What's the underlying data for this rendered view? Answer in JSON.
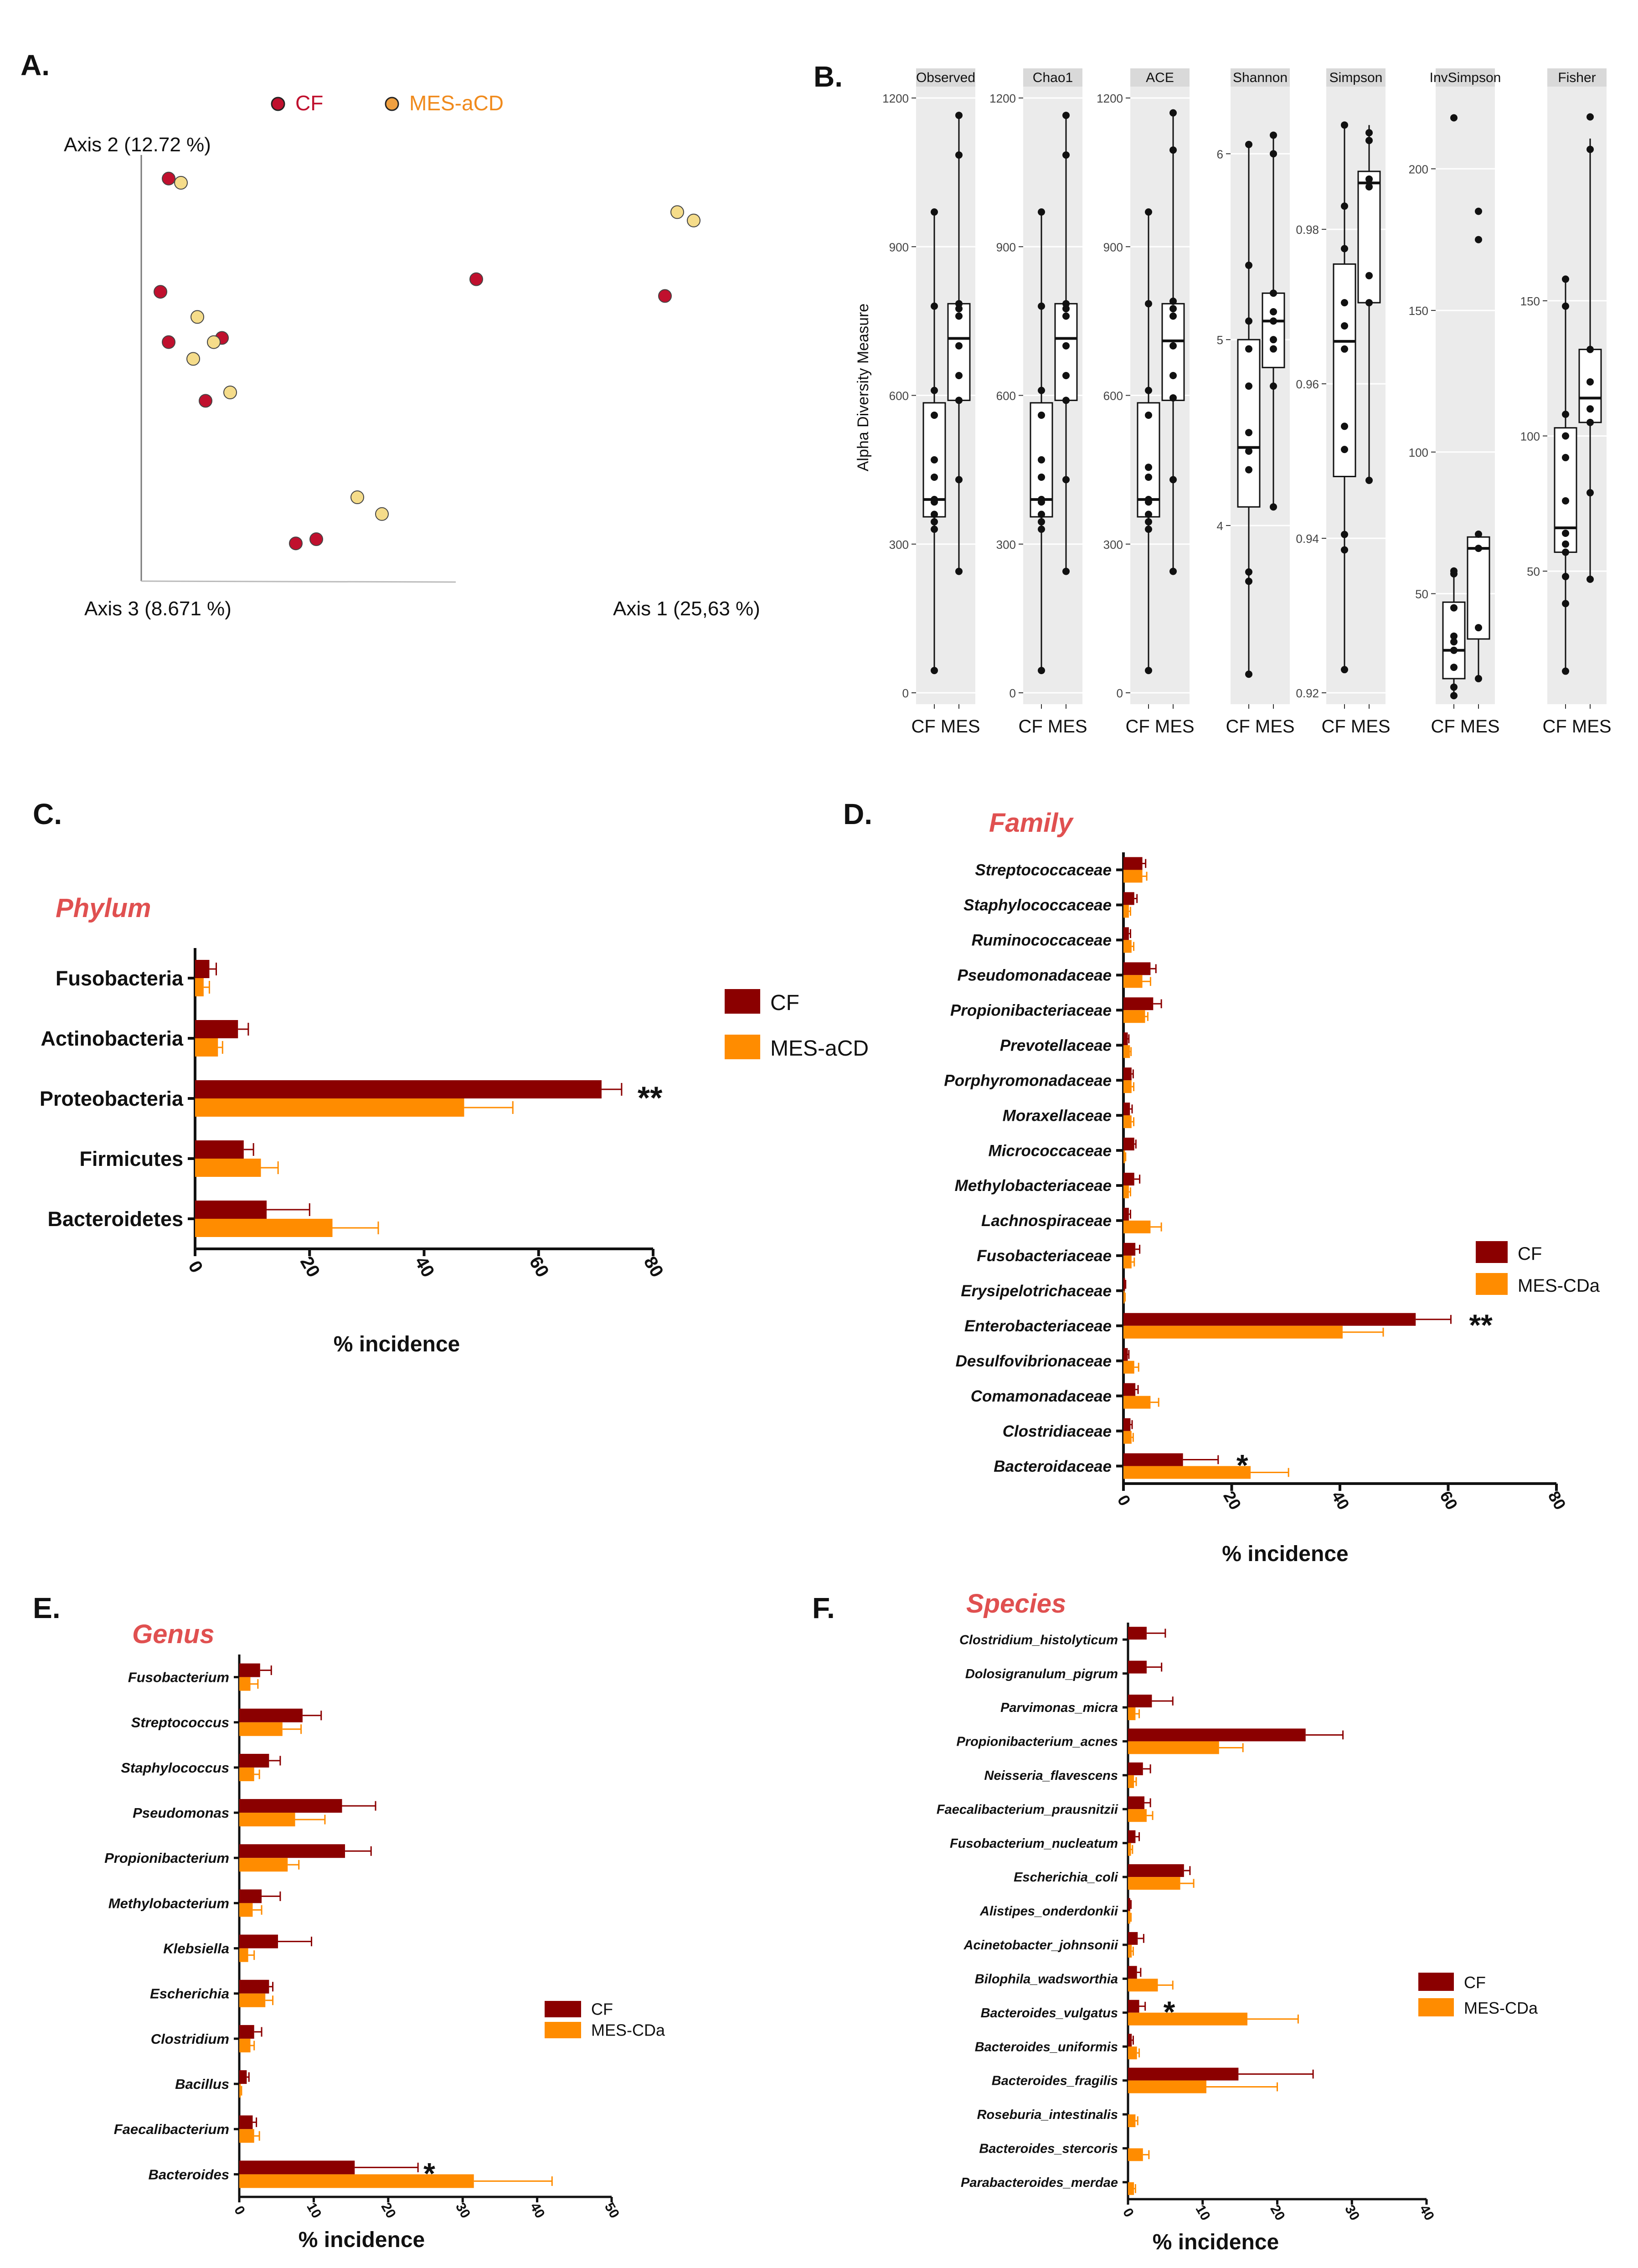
{
  "colors": {
    "cf": "#8B0000",
    "mes": "#FF8C00",
    "cf_dot": "#C0102E",
    "mes_dot": "#F5DC8A",
    "title_red": "#E05050",
    "facet_strip": "#D9D9D9",
    "facet_bg": "#EBEBEB"
  },
  "chart_data": [
    {
      "panel": "A.",
      "type": "scatter",
      "legend": [
        "CF",
        "MES-aCD"
      ],
      "axis_x_label": "Axis 1 (25,63 %)",
      "axis_y_label": "Axis 2 (12.72 %)",
      "axis_z_label": "Axis 3 (8.671 %)",
      "series": [
        {
          "name": "CF",
          "points": [
            [
              5,
              96
            ],
            [
              3,
              69
            ],
            [
              5,
              57
            ],
            [
              18,
              58
            ],
            [
              14,
              43
            ],
            [
              80,
              72
            ],
            [
              126,
              68
            ],
            [
              36,
              9
            ],
            [
              41,
              10
            ]
          ]
        },
        {
          "name": "MES-aCD",
          "points": [
            [
              8,
              95
            ],
            [
              12,
              63
            ],
            [
              16,
              57
            ],
            [
              11,
              53
            ],
            [
              20,
              45
            ],
            [
              51,
              20
            ],
            [
              57,
              16
            ],
            [
              129,
              88
            ],
            [
              133,
              86
            ]
          ]
        }
      ]
    },
    {
      "panel": "B.",
      "type": "box",
      "ylabel": "Alpha Diversity Measure",
      "groups": [
        "CF",
        "MES"
      ],
      "facets": [
        {
          "name": "Observed",
          "ticks": [
            0,
            300,
            600,
            900,
            1200
          ],
          "ylim": [
            0,
            1200
          ],
          "boxes": [
            {
              "q1": 355,
              "med": 390,
              "q3": 585,
              "min": 45,
              "max": 970
            },
            {
              "q1": 590,
              "med": 715,
              "q3": 785,
              "min": 245,
              "max": 1165
            }
          ],
          "points": [
            [
              45,
              330,
              345,
              360,
              385,
              390,
              435,
              470,
              560,
              610,
              780,
              970
            ],
            [
              245,
              430,
              590,
              640,
              700,
              760,
              775,
              785,
              1085,
              1165
            ]
          ]
        },
        {
          "name": "Chao1",
          "ticks": [
            0,
            300,
            600,
            900,
            1200
          ],
          "ylim": [
            0,
            1200
          ],
          "boxes": [
            {
              "q1": 355,
              "med": 390,
              "q3": 585,
              "min": 45,
              "max": 970
            },
            {
              "q1": 590,
              "med": 715,
              "q3": 785,
              "min": 245,
              "max": 1165
            }
          ],
          "points": [
            [
              45,
              330,
              345,
              360,
              385,
              390,
              435,
              470,
              560,
              610,
              780,
              970
            ],
            [
              245,
              430,
              590,
              640,
              700,
              760,
              775,
              785,
              1085,
              1165
            ]
          ]
        },
        {
          "name": "ACE",
          "ticks": [
            0,
            300,
            600,
            900,
            1200
          ],
          "ylim": [
            0,
            1200
          ],
          "boxes": [
            {
              "q1": 355,
              "med": 390,
              "q3": 585,
              "min": 45,
              "max": 970
            },
            {
              "q1": 590,
              "med": 710,
              "q3": 785,
              "min": 245,
              "max": 1170
            }
          ],
          "points": [
            [
              45,
              330,
              345,
              360,
              385,
              390,
              435,
              455,
              560,
              610,
              785,
              970
            ],
            [
              245,
              430,
              595,
              640,
              700,
              760,
              775,
              790,
              1095,
              1170
            ]
          ]
        },
        {
          "name": "Shannon",
          "ticks": [
            4,
            5,
            6
          ],
          "ylim": [
            3.1,
            6.3
          ],
          "boxes": [
            {
              "q1": 4.1,
              "med": 4.42,
              "q3": 5.0,
              "min": 3.2,
              "max": 6.05
            },
            {
              "q1": 4.85,
              "med": 5.1,
              "q3": 5.25,
              "min": 4.1,
              "max": 6.1
            }
          ],
          "points": [
            [
              3.2,
              3.7,
              3.75,
              4.3,
              4.4,
              4.5,
              4.75,
              4.95,
              5.1,
              5.4,
              6.05
            ],
            [
              4.1,
              4.75,
              4.95,
              5.0,
              5.1,
              5.15,
              5.25,
              6.0,
              6.1
            ]
          ]
        },
        {
          "name": "Simpson",
          "ticks": [
            0.92,
            0.94,
            0.96,
            0.98
          ],
          "ylim": [
            0.92,
            0.997
          ],
          "boxes": [
            {
              "q1": 0.948,
              "med": 0.9655,
              "q3": 0.9755,
              "min": 0.923,
              "max": 0.9935
            },
            {
              "q1": 0.9705,
              "med": 0.986,
              "q3": 0.9875,
              "min": 0.9475,
              "max": 0.9935
            }
          ],
          "points": [
            [
              0.923,
              0.9385,
              0.9405,
              0.9515,
              0.9545,
              0.9645,
              0.9675,
              0.9705,
              0.9775,
              0.983,
              0.9935
            ],
            [
              0.9475,
              0.9705,
              0.974,
              0.9855,
              0.9865,
              0.9915,
              0.9925
            ]
          ]
        },
        {
          "name": "InvSimpson",
          "ticks": [
            50,
            100,
            150,
            200
          ],
          "ylim": [
            15,
            225
          ],
          "boxes": [
            {
              "q1": 20,
              "med": 30,
              "q3": 47,
              "min": 14,
              "max": 58
            },
            {
              "q1": 34,
              "med": 66,
              "q3": 70,
              "min": 20,
              "max": 71
            }
          ],
          "points": [
            [
              14,
              17,
              24,
              30,
              33,
              35,
              45,
              57,
              58,
              218
            ],
            [
              20,
              38,
              66,
              71,
              175,
              185
            ]
          ]
        },
        {
          "name": "Fisher",
          "ticks": [
            50,
            100,
            150
          ],
          "ylim": [
            5,
            225
          ],
          "boxes": [
            {
              "q1": 57,
              "med": 66,
              "q3": 103,
              "min": 13,
              "max": 158
            },
            {
              "q1": 105,
              "med": 114,
              "q3": 132,
              "min": 47,
              "max": 210
            }
          ],
          "points": [
            [
              13,
              38,
              48,
              57,
              60,
              64,
              76,
              92,
              100,
              108,
              148,
              158
            ],
            [
              47,
              79,
              105,
              110,
              120,
              132,
              206,
              218
            ]
          ]
        }
      ]
    },
    {
      "panel": "C.",
      "type": "bar",
      "title": "Phylum",
      "xlabel": "% incidence",
      "xlim": [
        0,
        80
      ],
      "ticks": [
        0,
        20,
        40,
        60,
        80
      ],
      "legend": [
        "CF",
        "MES-aCD"
      ],
      "categories": [
        "Fusobacteria",
        "Actinobacteria",
        "Proteobacteria",
        "Firmicutes",
        "Bacteroidetes"
      ],
      "series": [
        {
          "name": "CF",
          "values": [
            2.5,
            7.5,
            71.0,
            8.5,
            12.5
          ],
          "errors": [
            1.2,
            1.8,
            3.5,
            1.7,
            7.5
          ]
        },
        {
          "name": "MES-aCD",
          "values": [
            1.5,
            4.0,
            47.0,
            11.5,
            24.0
          ],
          "errors": [
            1.0,
            0.8,
            8.5,
            3.0,
            8.0
          ]
        }
      ],
      "annotations": [
        {
          "category": "Proteobacteria",
          "text": "**"
        }
      ]
    },
    {
      "panel": "D.",
      "type": "bar",
      "title": "Family",
      "xlabel": "% incidence",
      "xlim": [
        0,
        80
      ],
      "ticks": [
        0,
        20,
        40,
        60,
        80
      ],
      "legend": [
        "CF",
        "MES-CDa"
      ],
      "categories": [
        "Streptococcaceae",
        "Staphylococcaceae",
        "Ruminococcaceae",
        "Pseudomonadaceae",
        "Propionibacteriaceae",
        "Prevotellaceae",
        "Porphyromonadaceae",
        "Moraxellaceae",
        "Micrococcaceae",
        "Methylobacteriaceae",
        "Lachnospiraceae",
        "Fusobacteriaceae",
        "Erysipelotrichaceae",
        "Enterobacteriaceae",
        "Desulfovibrionaceae",
        "Comamonadaceae",
        "Clostridiaceae",
        "Bacteroidaceae"
      ],
      "series": [
        {
          "name": "CF",
          "values": [
            3.5,
            2.0,
            1.0,
            5.0,
            5.5,
            0.8,
            1.5,
            1.2,
            2.0,
            2.0,
            1.0,
            2.2,
            0.3,
            54.0,
            0.8,
            2.2,
            1.3,
            11.0
          ],
          "errors": [
            0.6,
            0.5,
            0.3,
            1.0,
            1.5,
            0.2,
            0.3,
            0.4,
            0.3,
            1.0,
            0.3,
            0.8,
            0.1,
            6.5,
            0.2,
            0.5,
            0.3,
            6.5
          ]
        },
        {
          "name": "MES-CDa",
          "values": [
            3.5,
            1.0,
            1.5,
            3.5,
            4.0,
            1.2,
            1.5,
            1.5,
            0.3,
            1.0,
            5.0,
            1.5,
            0.2,
            40.5,
            2.0,
            5.0,
            1.5,
            23.5
          ],
          "errors": [
            0.8,
            0.3,
            0.4,
            1.5,
            0.5,
            0.2,
            0.4,
            0.4,
            0.1,
            0.3,
            2.0,
            0.5,
            0.1,
            7.5,
            0.8,
            1.5,
            0.3,
            7.0
          ]
        }
      ],
      "annotations": [
        {
          "category": "Enterobacteriaceae",
          "text": "**"
        },
        {
          "category": "Bacteroidaceae",
          "text": "*"
        }
      ]
    },
    {
      "panel": "E.",
      "type": "bar",
      "title": "Genus",
      "xlabel": "% incidence",
      "xlim": [
        0,
        50
      ],
      "ticks": [
        0,
        10,
        20,
        30,
        40,
        50
      ],
      "legend": [
        "CF",
        "MES-CDa"
      ],
      "categories": [
        "Fusobacterium",
        "Streptococcus",
        "Staphylococcus",
        "Pseudomonas",
        "Propionibacterium",
        "Methylobacterium",
        "Klebsiella",
        "Escherichia",
        "Clostridium",
        "Bacillus",
        "Faecalibacterium",
        "Bacteroides"
      ],
      "series": [
        {
          "name": "CF",
          "values": [
            2.8,
            8.5,
            4.0,
            13.8,
            14.2,
            3.0,
            5.2,
            4.0,
            2.0,
            1.0,
            1.8,
            15.5
          ],
          "errors": [
            1.5,
            2.5,
            1.5,
            4.5,
            3.5,
            2.5,
            4.5,
            0.5,
            1.0,
            0.3,
            0.5,
            8.5
          ]
        },
        {
          "name": "MES-CDa",
          "values": [
            1.5,
            5.8,
            2.0,
            7.5,
            6.5,
            1.8,
            1.2,
            3.5,
            1.5,
            0.2,
            2.0,
            31.5
          ],
          "errors": [
            1.0,
            2.5,
            0.7,
            4.0,
            1.5,
            1.2,
            0.8,
            1.0,
            0.5,
            0.1,
            0.7,
            10.5
          ]
        }
      ],
      "annotations": [
        {
          "category": "Bacteroides",
          "text": "*"
        }
      ]
    },
    {
      "panel": "F.",
      "type": "bar",
      "title": "Species",
      "xlabel": "% incidence",
      "xlim": [
        0,
        40
      ],
      "ticks": [
        0,
        10,
        20,
        30,
        40
      ],
      "legend": [
        "CF",
        "MES-CDa"
      ],
      "categories": [
        "Clostridium_histolyticum",
        "Dolosigranulum_pigrum",
        "Parvimonas_micra",
        "Propionibacterium_acnes",
        "Neisseria_flavescens",
        "Faecalibacterium_prausnitzii",
        "Fusobacterium_nucleatum",
        "Escherichia_coli",
        "Alistipes_onderdonkii",
        "Acinetobacter_johnsonii",
        "Bilophila_wadsworthia",
        "Bacteroides_vulgatus",
        "Bacteroides_uniformis",
        "Bacteroides_fragilis",
        "Roseburia_intestinalis",
        "Bacteroides_stercoris",
        "Parabacteroides_merdae"
      ],
      "series": [
        {
          "name": "CF",
          "values": [
            2.5,
            2.5,
            3.2,
            23.8,
            2.0,
            2.2,
            1.0,
            7.5,
            0.3,
            1.3,
            1.2,
            1.5,
            0.5,
            14.8,
            0.0,
            0.0,
            0.0
          ],
          "errors": [
            2.5,
            2.0,
            2.8,
            5.0,
            1.0,
            0.8,
            0.5,
            0.8,
            0.1,
            0.8,
            0.5,
            0.8,
            0.2,
            10.0,
            0.0,
            0.0,
            0.0
          ]
        },
        {
          "name": "MES-CDa",
          "values": [
            0.0,
            0.0,
            1.0,
            12.2,
            0.8,
            2.5,
            0.4,
            7.0,
            0.3,
            0.5,
            4.0,
            16.0,
            1.2,
            10.5,
            1.0,
            2.0,
            0.8
          ],
          "errors": [
            0.0,
            0.0,
            0.5,
            3.2,
            0.3,
            0.8,
            0.2,
            1.8,
            0.1,
            0.2,
            2.0,
            6.8,
            0.3,
            9.5,
            0.3,
            0.8,
            0.2
          ]
        }
      ],
      "annotations": [
        {
          "category": "Bacteroides_vulgatus",
          "text": "*"
        }
      ]
    }
  ]
}
